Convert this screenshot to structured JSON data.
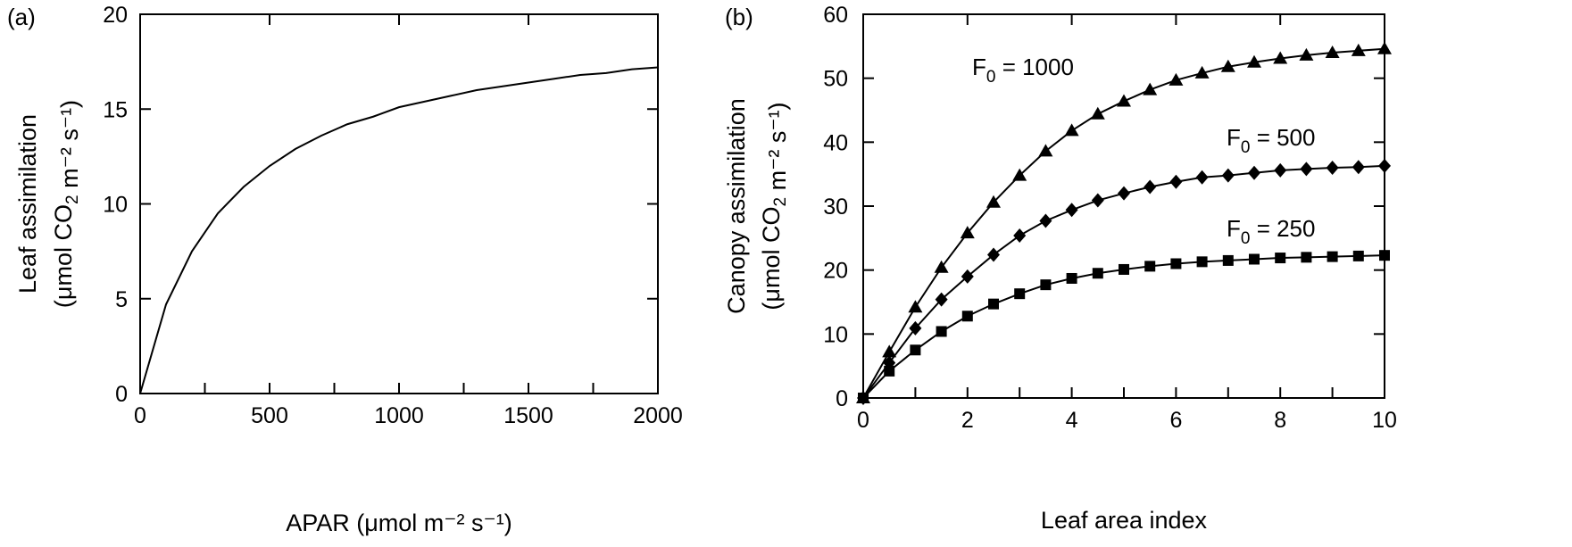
{
  "chart_data": [
    {
      "panel_label": "(a)",
      "type": "line",
      "xlabel": "APAR (μmol m⁻² s⁻¹)",
      "ylabel_line1": "Leaf assimilation",
      "ylabel_line2": "(μmol CO₂ m⁻² s⁻¹)",
      "xlim": [
        0,
        2000
      ],
      "ylim": [
        0,
        20
      ],
      "xticks": [
        0,
        500,
        1000,
        1500,
        2000
      ],
      "yticks": [
        0,
        5,
        10,
        15,
        20
      ],
      "grid": false,
      "series": [
        {
          "x": [
            0,
            100,
            200,
            300,
            400,
            500,
            600,
            700,
            800,
            900,
            1000,
            1100,
            1200,
            1300,
            1400,
            1500,
            1600,
            1700,
            1800,
            1900,
            2000
          ],
          "y": [
            0,
            4.7,
            7.5,
            9.5,
            10.9,
            12.0,
            12.9,
            13.6,
            14.2,
            14.6,
            15.1,
            15.4,
            15.7,
            16.0,
            16.2,
            16.4,
            16.6,
            16.8,
            16.9,
            17.1,
            17.2
          ]
        }
      ]
    },
    {
      "panel_label": "(b)",
      "type": "line",
      "xlabel": "Leaf area index",
      "ylabel_line1": "Canopy assimilation",
      "ylabel_line2": "(μmol CO₂ m⁻² s⁻¹)",
      "xlim": [
        0,
        10
      ],
      "ylim": [
        0,
        60
      ],
      "xticks": [
        0,
        2,
        4,
        6,
        8,
        10
      ],
      "yticks": [
        0,
        10,
        20,
        30,
        40,
        50,
        60
      ],
      "grid": false,
      "x": [
        0,
        0.5,
        1,
        1.5,
        2,
        2.5,
        3,
        3.5,
        4,
        4.5,
        5,
        5.5,
        6,
        6.5,
        7,
        7.5,
        8,
        8.5,
        9,
        9.5,
        10
      ],
      "series": [
        {
          "name": "F₀ = 1000",
          "marker": "triangle",
          "values": [
            0,
            7.2,
            14.2,
            20.4,
            25.8,
            30.6,
            34.8,
            38.6,
            41.8,
            44.4,
            46.4,
            48.2,
            49.7,
            50.8,
            51.8,
            52.5,
            53.1,
            53.6,
            54.0,
            54.3,
            54.6
          ]
        },
        {
          "name": "F₀ = 500",
          "marker": "diamond",
          "values": [
            0,
            5.5,
            10.9,
            15.4,
            19.0,
            22.4,
            25.4,
            27.7,
            29.4,
            30.9,
            32.0,
            33.0,
            33.8,
            34.5,
            34.8,
            35.2,
            35.6,
            35.8,
            36.0,
            36.1,
            36.3
          ]
        },
        {
          "name": "F₀ = 250",
          "marker": "square",
          "values": [
            0,
            4.2,
            7.5,
            10.4,
            12.8,
            14.7,
            16.3,
            17.7,
            18.7,
            19.5,
            20.1,
            20.6,
            21.0,
            21.3,
            21.5,
            21.7,
            21.9,
            22.0,
            22.1,
            22.2,
            22.3
          ]
        }
      ]
    }
  ]
}
